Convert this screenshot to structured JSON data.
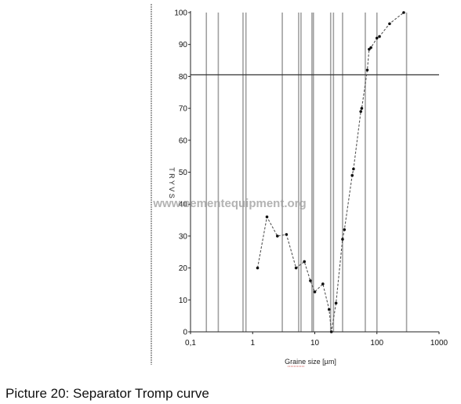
{
  "chart_data": {
    "type": "line",
    "title": "",
    "xlabel": "Graine size [µm]",
    "ylabel": "T R Y V S",
    "x_scale": "log",
    "xlim": [
      0.1,
      1000
    ],
    "ylim": [
      0,
      100
    ],
    "x_ticks": [
      {
        "value": 0.1,
        "label": "0,1"
      },
      {
        "value": 1,
        "label": "1"
      },
      {
        "value": 10,
        "label": "10"
      },
      {
        "value": 100,
        "label": "100"
      },
      {
        "value": 1000,
        "label": "1000"
      }
    ],
    "y_ticks": [
      0,
      10,
      20,
      30,
      40,
      50,
      60,
      70,
      80,
      90,
      100
    ],
    "vertical_lines_x": [
      0.18,
      0.28,
      0.7,
      0.78,
      3.0,
      5.5,
      6.0,
      9.0,
      9.5,
      18,
      20,
      28,
      65,
      100,
      300
    ],
    "horizontal_line_y": 80.5,
    "grid": false,
    "series": [
      {
        "color": "#555555",
        "points": [
          {
            "x": 1.2,
            "y": 20
          },
          {
            "x": 1.7,
            "y": 36
          },
          {
            "x": 2.5,
            "y": 30
          },
          {
            "x": 3.5,
            "y": 30.5
          },
          {
            "x": 5,
            "y": 20
          },
          {
            "x": 6.8,
            "y": 22
          },
          {
            "x": 8.5,
            "y": 16
          },
          {
            "x": 10,
            "y": 12.5
          },
          {
            "x": 13.5,
            "y": 15
          },
          {
            "x": 17,
            "y": 7
          },
          {
            "x": 18.5,
            "y": 0
          },
          {
            "x": 22,
            "y": 9
          },
          {
            "x": 28,
            "y": 29
          },
          {
            "x": 30,
            "y": 32
          },
          {
            "x": 40,
            "y": 49
          },
          {
            "x": 42,
            "y": 51
          },
          {
            "x": 55,
            "y": 69
          },
          {
            "x": 57,
            "y": 70
          },
          {
            "x": 70,
            "y": 82
          },
          {
            "x": 75,
            "y": 88.5
          },
          {
            "x": 80,
            "y": 89
          },
          {
            "x": 100,
            "y": 92
          },
          {
            "x": 110,
            "y": 92.5
          },
          {
            "x": 160,
            "y": 96.5
          },
          {
            "x": 270,
            "y": 100
          }
        ]
      }
    ],
    "watermark": "www.cementequipment.org"
  },
  "caption": "Picture 20: Separator Tromp curve",
  "colors": {
    "axis": "#222222",
    "vertical_line": "#777777",
    "horizontal_line": "#333333",
    "marker": "#111111"
  }
}
